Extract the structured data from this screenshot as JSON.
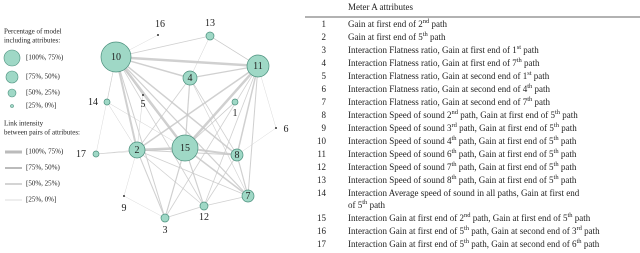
{
  "legend": {
    "size_title": [
      "Percentage of model",
      "including attributes:"
    ],
    "size_items": [
      "[100%, 75%)",
      "[75%, 50%)",
      "[50%, 25%)",
      "[25%, 0%]"
    ],
    "link_title": [
      "Link intensity",
      "between pairs of attributes:"
    ],
    "link_items": [
      "[100%, 75%)",
      "[75%, 50%)",
      "[50%, 25%)",
      "[25%, 0%]"
    ]
  },
  "nodes": [
    {
      "label": "10"
    },
    {
      "label": "16"
    },
    {
      "label": "13"
    },
    {
      "label": "11"
    },
    {
      "label": "4"
    },
    {
      "label": "5"
    },
    {
      "label": "14"
    },
    {
      "label": "1"
    },
    {
      "label": "6"
    },
    {
      "label": "2"
    },
    {
      "label": "15"
    },
    {
      "label": "8"
    },
    {
      "label": "17"
    },
    {
      "label": "7"
    },
    {
      "label": "9"
    },
    {
      "label": "3"
    },
    {
      "label": "12"
    }
  ],
  "table": {
    "header": "Meter A attributes",
    "rows": [
      {
        "num": "1",
        "lines": [
          [
            "Gain at first end of 2",
            "nd",
            " path"
          ]
        ]
      },
      {
        "num": "2",
        "lines": [
          [
            "Gain at first end of 5",
            "th",
            " path"
          ]
        ]
      },
      {
        "num": "3",
        "lines": [
          [
            "Interaction Flatness ratio, Gain at first end of 1",
            "st",
            " path"
          ]
        ]
      },
      {
        "num": "4",
        "lines": [
          [
            "Interaction Flatness ratio, Gain at first end of 7",
            "th",
            " path"
          ]
        ]
      },
      {
        "num": "5",
        "lines": [
          [
            "Interaction Flatness ratio, Gain at second end of 1",
            "st",
            " path"
          ]
        ]
      },
      {
        "num": "6",
        "lines": [
          [
            "Interaction Flatness ratio, Gain at second end of 4",
            "th",
            " path"
          ]
        ]
      },
      {
        "num": "7",
        "lines": [
          [
            "Interaction Flatness ratio, Gain at second end of 7",
            "th",
            " path"
          ]
        ]
      },
      {
        "num": "8",
        "lines": [
          [
            "Interaction Speed of sound 2",
            "nd",
            " path, Gain at first end of 5",
            "th",
            " path"
          ]
        ]
      },
      {
        "num": "9",
        "lines": [
          [
            "Interaction Speed of sound 3",
            "rd",
            " path, Gain at first end of 5",
            "th",
            " path"
          ]
        ]
      },
      {
        "num": "10",
        "lines": [
          [
            "Interaction Speed of sound 4",
            "th",
            " path, Gain at first end of 5",
            "th",
            " path"
          ]
        ]
      },
      {
        "num": "11",
        "lines": [
          [
            "Interaction Speed of sound 6",
            "th",
            " path, Gain at first end of 5",
            "th",
            " path"
          ]
        ]
      },
      {
        "num": "12",
        "lines": [
          [
            "Interaction Speed of sound 7",
            "th",
            " path, Gain at first end of 5",
            "th",
            " path"
          ]
        ]
      },
      {
        "num": "13",
        "lines": [
          [
            "Interaction Speed of sound 8",
            "th",
            " path, Gain at first end of 5",
            "th",
            " path"
          ]
        ]
      },
      {
        "num": "14",
        "lines": [
          [
            "Interaction Average speed of sound in all paths, Gain at first end"
          ],
          [
            "of 5",
            "th",
            " path"
          ]
        ]
      },
      {
        "num": "15",
        "lines": [
          [
            "Interaction Gain at first end of 2",
            "nd",
            " path, Gain at first end of 5",
            "th",
            " path"
          ]
        ]
      },
      {
        "num": "16",
        "lines": [
          [
            "Interaction Gain at first end of 5",
            "th",
            " path, Gain at second end of 3",
            "rd",
            " path"
          ]
        ]
      },
      {
        "num": "17",
        "lines": [
          [
            "Interaction Gain at first end of 5",
            "th",
            " path, Gain at second end of 6",
            "th",
            " path"
          ]
        ]
      }
    ]
  }
}
